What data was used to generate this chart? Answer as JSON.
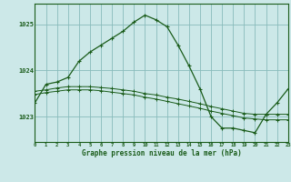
{
  "title": "Graphe pression niveau de la mer (hPa)",
  "bg_color": "#cce8e8",
  "grid_color": "#88bbbb",
  "line_color": "#1a5c1a",
  "hours": [
    0,
    1,
    2,
    3,
    4,
    5,
    6,
    7,
    8,
    9,
    10,
    11,
    12,
    13,
    14,
    15,
    16,
    17,
    18,
    19,
    20,
    21,
    22,
    23
  ],
  "series1": [
    1023.3,
    1023.7,
    1023.75,
    1023.85,
    1024.2,
    1024.4,
    1024.55,
    1024.7,
    1024.85,
    1025.05,
    1025.2,
    1025.1,
    1024.95,
    1024.55,
    1024.1,
    1023.6,
    1023.0,
    1022.75,
    1022.75,
    1022.7,
    1022.65,
    1023.05,
    1023.3,
    1023.6
  ],
  "series2": [
    1023.55,
    1023.58,
    1023.62,
    1023.65,
    1023.65,
    1023.65,
    1023.63,
    1023.61,
    1023.58,
    1023.55,
    1023.5,
    1023.47,
    1023.42,
    1023.38,
    1023.33,
    1023.28,
    1023.22,
    1023.17,
    1023.12,
    1023.07,
    1023.05,
    1023.05,
    1023.05,
    1023.05
  ],
  "series3": [
    1023.48,
    1023.52,
    1023.55,
    1023.58,
    1023.58,
    1023.58,
    1023.56,
    1023.53,
    1023.5,
    1023.47,
    1023.42,
    1023.38,
    1023.33,
    1023.28,
    1023.23,
    1023.18,
    1023.12,
    1023.07,
    1023.02,
    1022.97,
    1022.95,
    1022.93,
    1022.93,
    1022.93
  ],
  "ylim": [
    1022.45,
    1025.45
  ],
  "yticks": [
    1023,
    1024,
    1025
  ],
  "xlim": [
    0,
    23
  ]
}
